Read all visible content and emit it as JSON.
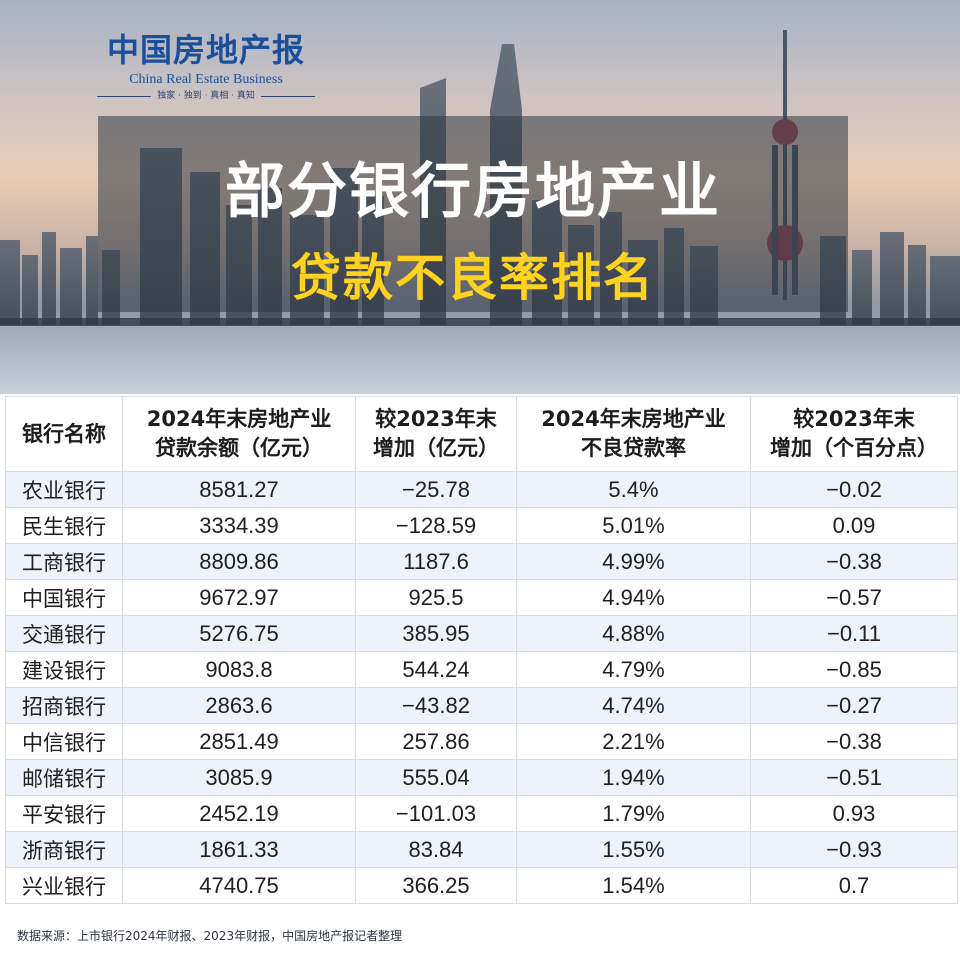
{
  "brand": {
    "name_cn": "中国房地产报",
    "name_en": "China Real Estate Business",
    "tagline": "独家 · 独到 · 真相 · 真知"
  },
  "title": {
    "line1": "部分银行房地产业",
    "line2": "贷款不良率排名"
  },
  "table": {
    "headers": [
      {
        "line1": "银行名称",
        "line2": ""
      },
      {
        "line1": "2024年末房地产业",
        "line2": "贷款余额（亿元）"
      },
      {
        "line1": "较2023年末",
        "line2": "增加（亿元）"
      },
      {
        "line1": "2024年末房地产业",
        "line2": "不良贷款率"
      },
      {
        "line1": "较2023年末",
        "line2": "增加（个百分点）"
      }
    ],
    "rows": [
      {
        "bank": "农业银行",
        "balance": "8581.27",
        "balance_change": "−25.78",
        "npl_rate": "5.4%",
        "rate_change": "−0.02"
      },
      {
        "bank": "民生银行",
        "balance": "3334.39",
        "balance_change": "−128.59",
        "npl_rate": "5.01%",
        "rate_change": "0.09"
      },
      {
        "bank": "工商银行",
        "balance": "8809.86",
        "balance_change": "1187.6",
        "npl_rate": "4.99%",
        "rate_change": "−0.38"
      },
      {
        "bank": "中国银行",
        "balance": "9672.97",
        "balance_change": "925.5",
        "npl_rate": "4.94%",
        "rate_change": "−0.57"
      },
      {
        "bank": "交通银行",
        "balance": "5276.75",
        "balance_change": "385.95",
        "npl_rate": "4.88%",
        "rate_change": "−0.11"
      },
      {
        "bank": "建设银行",
        "balance": "9083.8",
        "balance_change": "544.24",
        "npl_rate": "4.79%",
        "rate_change": "−0.85"
      },
      {
        "bank": "招商银行",
        "balance": "2863.6",
        "balance_change": "−43.82",
        "npl_rate": "4.74%",
        "rate_change": "−0.27"
      },
      {
        "bank": "中信银行",
        "balance": "2851.49",
        "balance_change": "257.86",
        "npl_rate": "2.21%",
        "rate_change": "−0.38"
      },
      {
        "bank": "邮储银行",
        "balance": "3085.9",
        "balance_change": "555.04",
        "npl_rate": "1.94%",
        "rate_change": "−0.51"
      },
      {
        "bank": "平安银行",
        "balance": "2452.19",
        "balance_change": "−101.03",
        "npl_rate": "1.79%",
        "rate_change": "0.93"
      },
      {
        "bank": "浙商银行",
        "balance": "1861.33",
        "balance_change": "83.84",
        "npl_rate": "1.55%",
        "rate_change": "−0.93"
      },
      {
        "bank": "兴业银行",
        "balance": "4740.75",
        "balance_change": "366.25",
        "npl_rate": "1.54%",
        "rate_change": "0.7"
      }
    ]
  },
  "footer": "数据来源：上市银行2024年财报、2023年财报，中国房地产报记者整理"
}
